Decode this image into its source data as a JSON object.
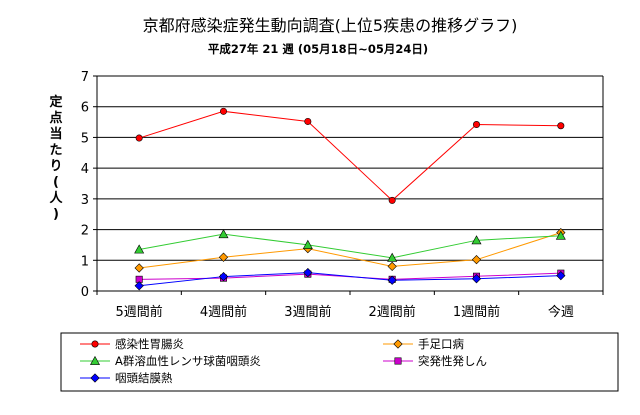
{
  "chart_data": {
    "type": "line",
    "title": "京都府感染症発生動向調査(上位5疾患の推移グラフ)",
    "subtitle": "平成27年 21 週 (05月18日~05月24日)",
    "ylabel": "定点当たり(人)",
    "xlabel": "",
    "categories": [
      "5週間前",
      "4週間前",
      "3週間前",
      "2週間前",
      "1週間前",
      "今週"
    ],
    "ylim": [
      0,
      7
    ],
    "yticks": [
      "0",
      "1",
      "2",
      "3",
      "4",
      "5",
      "6",
      "7"
    ],
    "grid": true,
    "legend_position": "bottom",
    "series": [
      {
        "name": "感染性胃腸炎",
        "color": "#ff0000",
        "marker": "circle",
        "values": [
          4.98,
          5.85,
          5.52,
          2.95,
          5.42,
          5.38
        ]
      },
      {
        "name": "手足口病",
        "color": "#ff9900",
        "marker": "diamond",
        "values": [
          0.75,
          1.1,
          1.38,
          0.8,
          1.02,
          1.9
        ]
      },
      {
        "name": "A群溶血性レンサ球菌咽頭炎",
        "color": "#33cc33",
        "marker": "triangle",
        "values": [
          1.35,
          1.85,
          1.5,
          1.08,
          1.65,
          1.8
        ]
      },
      {
        "name": "突発性発しん",
        "color": "#cc00cc",
        "marker": "square",
        "values": [
          0.38,
          0.42,
          0.55,
          0.38,
          0.48,
          0.58
        ]
      },
      {
        "name": "咽頭結膜熱",
        "color": "#0000ff",
        "marker": "diamond",
        "values": [
          0.17,
          0.47,
          0.6,
          0.35,
          0.4,
          0.5
        ]
      }
    ]
  }
}
